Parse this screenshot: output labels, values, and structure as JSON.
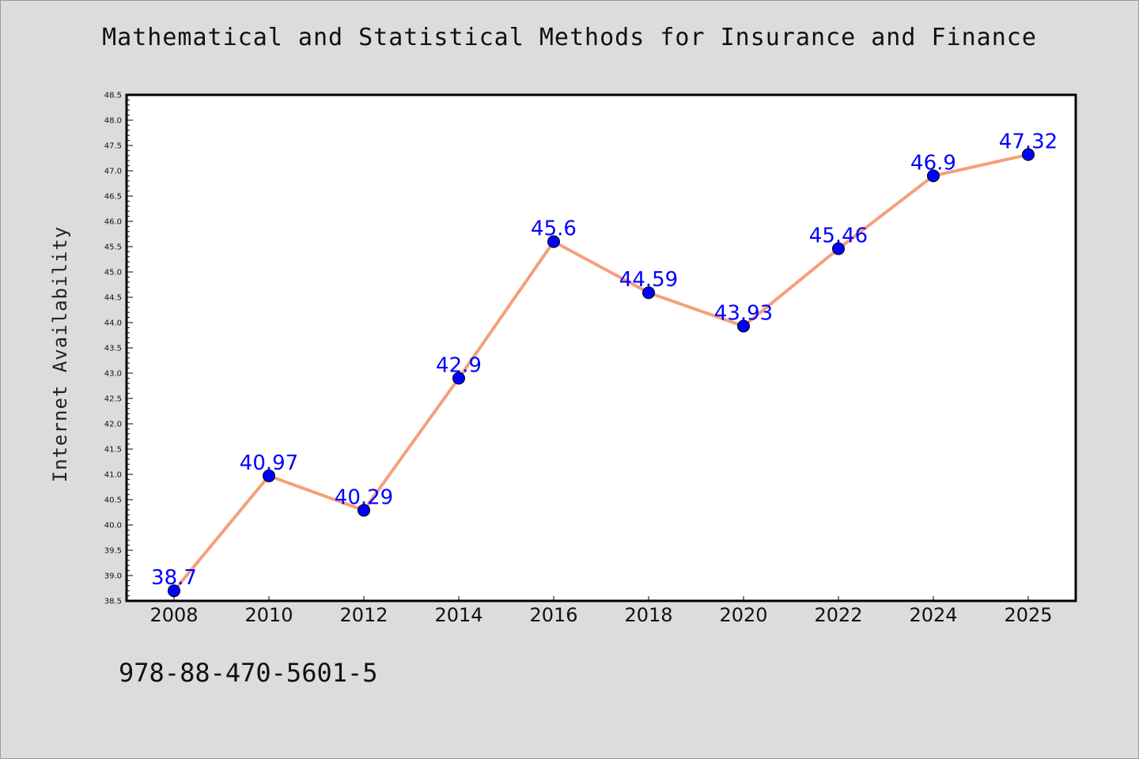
{
  "chart_data": {
    "type": "line",
    "title": "Mathematical and Statistical Methods for Insurance and Finance",
    "xlabel": "",
    "ylabel": "Internet Availability",
    "categories": [
      "2008",
      "2010",
      "2012",
      "2014",
      "2016",
      "2018",
      "2020",
      "2022",
      "2024",
      "2025"
    ],
    "series": [
      {
        "values": [
          38.7,
          40.97,
          40.29,
          42.9,
          45.6,
          44.59,
          43.93,
          45.46,
          46.9,
          47.32
        ],
        "data_labels": [
          "38.7",
          "40.97",
          "40.29",
          "42.9",
          "45.6",
          "44.59",
          "43.93",
          "45.46",
          "46.9",
          "47.32"
        ],
        "line_color": "#f4a07c",
        "marker_color": "#0000ff"
      }
    ],
    "ylim": [
      38.5,
      48.5
    ],
    "yticks": [
      "38.5",
      "39.0",
      "39.5",
      "40.0",
      "40.5",
      "41.0",
      "41.5",
      "42.0",
      "42.5",
      "43.0",
      "43.5",
      "44.0",
      "44.5",
      "45.0",
      "45.5",
      "46.0",
      "46.5",
      "47.0",
      "47.5",
      "48.0",
      "48.5"
    ],
    "grid": false,
    "legend": "none"
  },
  "footnote": "978-88-470-5601-5",
  "colors": {
    "background": "#dcdcdc",
    "plot_background": "#ffffff",
    "line": "#f4a07c",
    "marker": "#0000ff",
    "data_label": "#0000ff"
  }
}
